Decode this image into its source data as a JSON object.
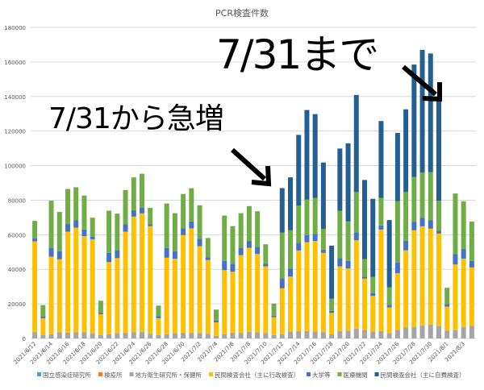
{
  "chart_data": {
    "type": "bar",
    "stacked": true,
    "title": "PCR検査件数",
    "xlabel": "",
    "ylabel": "",
    "ylim": [
      0,
      180000
    ],
    "yticks": [
      "0",
      "20000",
      "40000",
      "60000",
      "80000",
      "100000",
      "120000",
      "140000",
      "160000",
      "180000"
    ],
    "grid": true,
    "legend": "bottom",
    "categories": [
      "2021/6/12",
      "2021/6/13",
      "2021/6/14",
      "2021/6/15",
      "2021/6/16",
      "2021/6/17",
      "2021/6/18",
      "2021/6/19",
      "2021/6/20",
      "2021/6/21",
      "2021/6/22",
      "2021/6/23",
      "2021/6/24",
      "2021/6/25",
      "2021/6/26",
      "2021/6/27",
      "2021/6/28",
      "2021/6/29",
      "2021/6/30",
      "2021/7/1",
      "2021/7/2",
      "2021/7/3",
      "2021/7/4",
      "2021/7/5",
      "2021/7/6",
      "2021/7/7",
      "2021/7/8",
      "2021/7/9",
      "2021/7/10",
      "2021/7/11",
      "2021/7/12",
      "2021/7/13",
      "2021/7/14",
      "2021/7/15",
      "2021/7/16",
      "2021/7/17",
      "2021/7/18",
      "2021/7/19",
      "2021/7/20",
      "2021/7/21",
      "2021/7/22",
      "2021/7/23",
      "2021/7/24",
      "2021/7/25",
      "2021/7/26",
      "2021/7/27",
      "2021/7/28",
      "2021/7/29",
      "2021/7/30",
      "2021/7/31",
      "2021/8/1",
      "2021/8/2",
      "2021/8/3",
      "2021/8/4"
    ],
    "series": [
      {
        "name": "国立感染症研究所",
        "color": "#5B9BD5",
        "values": [
          100,
          100,
          100,
          100,
          100,
          100,
          100,
          100,
          100,
          100,
          100,
          100,
          100,
          100,
          100,
          100,
          100,
          100,
          100,
          100,
          100,
          100,
          100,
          100,
          100,
          100,
          100,
          100,
          100,
          100,
          100,
          100,
          100,
          100,
          100,
          100,
          100,
          100,
          100,
          100,
          100,
          100,
          100,
          100,
          100,
          100,
          100,
          100,
          100,
          100,
          100,
          100,
          100,
          100
        ]
      },
      {
        "name": "検疫所",
        "color": "#ED7D31",
        "values": [
          400,
          400,
          400,
          400,
          400,
          400,
          400,
          400,
          400,
          400,
          400,
          400,
          400,
          400,
          400,
          400,
          400,
          400,
          400,
          400,
          400,
          400,
          400,
          400,
          400,
          400,
          400,
          400,
          400,
          400,
          400,
          400,
          400,
          400,
          400,
          400,
          400,
          400,
          400,
          400,
          400,
          400,
          400,
          400,
          400,
          400,
          400,
          400,
          400,
          400,
          400,
          400,
          400,
          400
        ]
      },
      {
        "name": "地方衛生研究所・保健所",
        "color": "#A5A5A5",
        "values": [
          3000,
          1500,
          2000,
          3000,
          2800,
          3000,
          3000,
          2500,
          1500,
          2000,
          2500,
          2800,
          3000,
          3200,
          2200,
          1500,
          2000,
          2500,
          2800,
          2800,
          2500,
          2200,
          1000,
          2000,
          2800,
          2800,
          3300,
          3000,
          2500,
          1500,
          2000,
          3500,
          3800,
          3800,
          3500,
          3200,
          1800,
          3800,
          4000,
          5200,
          4500,
          3500,
          3800,
          2500,
          4500,
          5800,
          6000,
          7000,
          7500,
          6800,
          4000,
          4200,
          6000,
          6800
        ]
      },
      {
        "name": "民間検査会社（主に行政検査）",
        "color": "#FFC000",
        "values": [
          52700,
          9700,
          44800,
          42300,
          58500,
          60600,
          55700,
          54400,
          12000,
          41700,
          43500,
          58500,
          67000,
          68700,
          62300,
          9700,
          44200,
          43100,
          56500,
          60400,
          50400,
          42700,
          7800,
          37000,
          35300,
          44900,
          48600,
          45400,
          38700,
          10300,
          26500,
          31800,
          46600,
          51400,
          52400,
          45800,
          12500,
          37400,
          36000,
          51100,
          29600,
          20600,
          58700,
          14900,
          32800,
          44700,
          56100,
          57400,
          55500,
          53400,
          13900,
          38100,
          39700,
          33800
        ]
      },
      {
        "name": "大学等",
        "color": "#4472C4",
        "values": [
          1800,
          900,
          5100,
          4600,
          4400,
          4400,
          3800,
          1400,
          800,
          5300,
          4500,
          4200,
          3700,
          3200,
          1000,
          1100,
          5600,
          4300,
          4000,
          4000,
          4200,
          1500,
          1000,
          5300,
          4500,
          4200,
          4000,
          4000,
          1600,
          900,
          5700,
          4700,
          4500,
          4100,
          4000,
          1900,
          1200,
          4700,
          4300,
          4500,
          1200,
          1600,
          2400,
          1600,
          6200,
          5500,
          4800,
          4800,
          5000,
          1600,
          1400,
          6100,
          5600,
          3700
        ]
      },
      {
        "name": "医療機関",
        "color": "#70AD47",
        "values": [
          10000,
          6700,
          27300,
          22800,
          20300,
          19000,
          19700,
          11100,
          7000,
          24400,
          21200,
          19900,
          19000,
          19700,
          9600,
          6200,
          25800,
          22100,
          19800,
          19200,
          19500,
          11200,
          6400,
          26300,
          21900,
          20100,
          20200,
          20700,
          11200,
          7000,
          26600,
          22200,
          21500,
          20500,
          20900,
          12000,
          7000,
          27400,
          22900,
          23400,
          10100,
          9400,
          15900,
          10100,
          35400,
          28200,
          26000,
          26200,
          27800,
          17400,
          9500,
          35000,
          27600,
          22800
        ]
      },
      {
        "name": "民間検査会社（主に自費検査）",
        "color": "#255E91",
        "values": [
          0,
          0,
          0,
          0,
          0,
          0,
          0,
          0,
          0,
          0,
          0,
          0,
          0,
          0,
          0,
          0,
          0,
          0,
          0,
          0,
          0,
          0,
          0,
          0,
          0,
          0,
          0,
          0,
          0,
          0,
          25700,
          30500,
          40900,
          51900,
          48500,
          38400,
          30700,
          36100,
          45200,
          56200,
          45800,
          45200,
          44500,
          38900,
          39500,
          47900,
          65100,
          71100,
          68600,
          59600,
          0,
          0,
          0,
          0
        ]
      }
    ],
    "xtick_labels_every": 2,
    "annotations": [
      {
        "text": "7/31から急増",
        "arrow": "points to 2021/7/12 bar"
      },
      {
        "text": "7/31まで",
        "arrow": "points to 2021/7/31 bar"
      }
    ]
  }
}
